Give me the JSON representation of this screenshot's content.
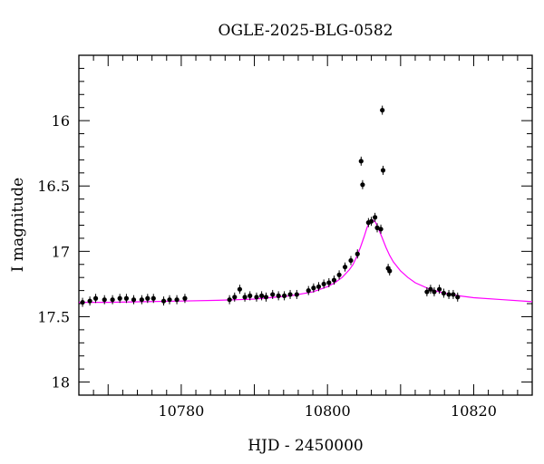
{
  "chart_data": {
    "type": "scatter",
    "title": "OGLE-2025-BLG-0582",
    "xlabel": "HJD - 2450000",
    "ylabel": "I magnitude",
    "xlim": [
      10766,
      10828
    ],
    "ylim": [
      18.1,
      15.5
    ],
    "y_inverted": true,
    "x_ticks": [
      10780,
      10800,
      10820
    ],
    "y_ticks": [
      16,
      16.5,
      17,
      17.5,
      18
    ],
    "y_tick_labels": [
      "16",
      "16.5",
      "17",
      "17.5",
      "18"
    ],
    "grid": false,
    "colors": {
      "points": "#000000",
      "model": "#ff00ff"
    },
    "series": [
      {
        "kind": "points",
        "x": [
          10766.5,
          10767.5,
          10768.3,
          10769.5,
          10770.6,
          10771.6,
          10772.5,
          10773.5,
          10774.6,
          10775.4,
          10776.2,
          10777.6,
          10778.4,
          10779.4,
          10780.5,
          10786.6,
          10787.3,
          10788.0,
          10788.7,
          10789.4,
          10790.3,
          10791.0,
          10791.6,
          10792.5,
          10793.3,
          10794.1,
          10794.9,
          10795.8,
          10797.4,
          10798.1,
          10798.8,
          10799.5,
          10800.2,
          10800.9,
          10801.6,
          10802.4,
          10803.2,
          10804.1,
          10804.6,
          10804.8,
          10805.6,
          10806.0,
          10806.5,
          10806.8,
          10807.3,
          10807.5,
          10807.6,
          10808.3,
          10808.5,
          10813.6,
          10814.1,
          10814.6,
          10815.3,
          10815.9,
          10816.6,
          10817.2,
          10817.8
        ],
        "y": [
          17.39,
          17.38,
          17.36,
          17.37,
          17.37,
          17.36,
          17.36,
          17.37,
          17.37,
          17.36,
          17.36,
          17.38,
          17.37,
          17.37,
          17.36,
          17.37,
          17.35,
          17.29,
          17.35,
          17.34,
          17.35,
          17.34,
          17.35,
          17.33,
          17.34,
          17.34,
          17.33,
          17.33,
          17.3,
          17.28,
          17.27,
          17.25,
          17.24,
          17.22,
          17.18,
          17.12,
          17.07,
          17.02,
          16.31,
          16.49,
          16.78,
          16.77,
          16.74,
          16.82,
          16.83,
          15.92,
          16.38,
          17.13,
          17.15,
          17.31,
          17.29,
          17.31,
          17.29,
          17.32,
          17.33,
          17.33,
          17.35
        ]
      },
      {
        "kind": "model",
        "x": [
          10766,
          10770,
          10775,
          10780,
          10785,
          10790,
          10795,
          10798,
          10800,
          10801,
          10802,
          10803,
          10803.5,
          10804,
          10804.5,
          10805,
          10805.4,
          10805.8,
          10806.2,
          10806.6,
          10807,
          10807.5,
          10808,
          10808.5,
          10809,
          10810,
          10811,
          10812,
          10814,
          10816,
          10818,
          10820,
          10824,
          10828
        ],
        "y": [
          17.39,
          17.39,
          17.385,
          17.38,
          17.375,
          17.365,
          17.34,
          17.31,
          17.27,
          17.24,
          17.2,
          17.14,
          17.1,
          17.04,
          16.97,
          16.89,
          16.82,
          16.77,
          16.76,
          16.78,
          16.83,
          16.9,
          16.97,
          17.03,
          17.08,
          17.15,
          17.2,
          17.24,
          17.29,
          17.32,
          17.34,
          17.355,
          17.37,
          17.385
        ]
      }
    ]
  }
}
